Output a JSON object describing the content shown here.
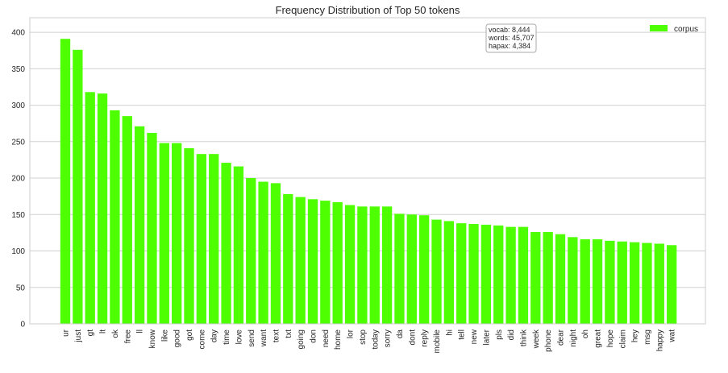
{
  "chart_data": {
    "type": "bar",
    "title": "Frequency Distribution of Top 50 tokens",
    "xlabel": "",
    "ylabel": "",
    "ylim": [
      0,
      420
    ],
    "yticks": [
      0,
      50,
      100,
      150,
      200,
      250,
      300,
      350,
      400
    ],
    "grid": true,
    "legend_position": "top-right",
    "categories": [
      "ur",
      "just",
      "gt",
      "lt",
      "ok",
      "free",
      "ll",
      "know",
      "like",
      "good",
      "got",
      "come",
      "day",
      "time",
      "love",
      "send",
      "want",
      "text",
      "txt",
      "going",
      "don",
      "need",
      "home",
      "lor",
      "stop",
      "today",
      "sorry",
      "da",
      "dont",
      "reply",
      "mobile",
      "hi",
      "tell",
      "new",
      "later",
      "pls",
      "did",
      "think",
      "week",
      "phone",
      "dear",
      "night",
      "oh",
      "great",
      "hope",
      "claim",
      "hey",
      "msg",
      "happy",
      "wat"
    ],
    "series": [
      {
        "name": "corpus",
        "color": "#4dff00",
        "values": [
          391,
          376,
          318,
          316,
          293,
          285,
          271,
          262,
          248,
          248,
          241,
          233,
          233,
          221,
          216,
          200,
          195,
          193,
          178,
          174,
          171,
          169,
          167,
          163,
          161,
          161,
          161,
          151,
          150,
          149,
          143,
          141,
          138,
          137,
          136,
          135,
          133,
          133,
          126,
          126,
          123,
          119,
          116,
          116,
          114,
          113,
          112,
          111,
          110,
          108
        ]
      }
    ],
    "info_box": [
      "vocab: 8,444",
      "words: 45,707",
      "hapax: 4,384"
    ]
  }
}
